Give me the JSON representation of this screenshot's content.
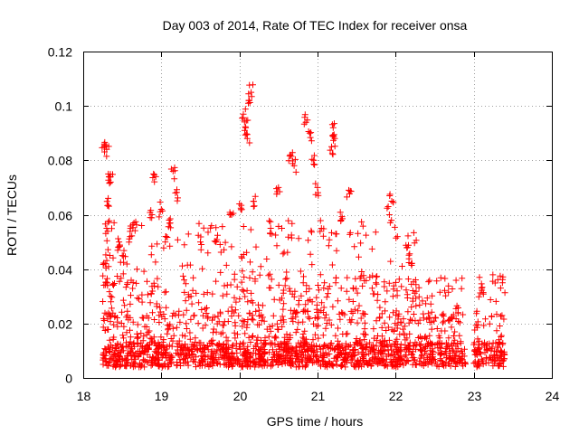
{
  "chart_data": {
    "type": "scatter",
    "title": "Day 003 of 2014, Rate Of TEC Index for receiver onsa",
    "xlabel": "GPS time / hours",
    "ylabel": "ROTI / TECUs",
    "xlim": [
      18,
      24
    ],
    "ylim": [
      0,
      0.12
    ],
    "xticks": [
      18,
      19,
      20,
      21,
      22,
      23,
      24
    ],
    "yticks": [
      0,
      0.02,
      0.04,
      0.06,
      0.08,
      0.1,
      0.12
    ],
    "xtick_labels": [
      "18",
      "19",
      "20",
      "21",
      "22",
      "23",
      "24"
    ],
    "ytick_labels": [
      "0",
      "0.02",
      "0.04",
      "0.06",
      "0.08",
      "0.1",
      "0.12"
    ],
    "grid": true,
    "marker": "+",
    "color": "#ff0000",
    "series": [
      {
        "name": "ROTI",
        "x_range": [
          18.25,
          23.4
        ],
        "gaps": [
          [
            22.9,
            23.0
          ]
        ],
        "baseline_band": [
          0.004,
          0.025
        ],
        "highlights": [
          {
            "x": 18.27,
            "y": 0.086
          },
          {
            "x": 18.3,
            "y": 0.084
          },
          {
            "x": 18.33,
            "y": 0.074
          },
          {
            "x": 18.35,
            "y": 0.072
          },
          {
            "x": 18.32,
            "y": 0.066
          },
          {
            "x": 18.3,
            "y": 0.055
          },
          {
            "x": 18.28,
            "y": 0.042
          },
          {
            "x": 18.31,
            "y": 0.034
          },
          {
            "x": 18.45,
            "y": 0.048
          },
          {
            "x": 18.5,
            "y": 0.045
          },
          {
            "x": 18.6,
            "y": 0.052
          },
          {
            "x": 18.65,
            "y": 0.057
          },
          {
            "x": 18.9,
            "y": 0.075
          },
          {
            "x": 18.88,
            "y": 0.06
          },
          {
            "x": 19.0,
            "y": 0.062
          },
          {
            "x": 19.05,
            "y": 0.05
          },
          {
            "x": 19.15,
            "y": 0.076
          },
          {
            "x": 19.18,
            "y": 0.068
          },
          {
            "x": 19.1,
            "y": 0.058
          },
          {
            "x": 19.5,
            "y": 0.05
          },
          {
            "x": 19.7,
            "y": 0.05
          },
          {
            "x": 19.9,
            "y": 0.06
          },
          {
            "x": 20.0,
            "y": 0.064
          },
          {
            "x": 20.05,
            "y": 0.097
          },
          {
            "x": 20.08,
            "y": 0.092
          },
          {
            "x": 20.15,
            "y": 0.105
          },
          {
            "x": 20.12,
            "y": 0.102
          },
          {
            "x": 20.1,
            "y": 0.088
          },
          {
            "x": 20.18,
            "y": 0.065
          },
          {
            "x": 20.4,
            "y": 0.055
          },
          {
            "x": 20.5,
            "y": 0.07
          },
          {
            "x": 20.65,
            "y": 0.082
          },
          {
            "x": 20.7,
            "y": 0.078
          },
          {
            "x": 20.85,
            "y": 0.094
          },
          {
            "x": 20.9,
            "y": 0.09
          },
          {
            "x": 20.95,
            "y": 0.08
          },
          {
            "x": 21.0,
            "y": 0.07
          },
          {
            "x": 21.05,
            "y": 0.055
          },
          {
            "x": 21.2,
            "y": 0.092
          },
          {
            "x": 21.22,
            "y": 0.088
          },
          {
            "x": 21.18,
            "y": 0.085
          },
          {
            "x": 21.4,
            "y": 0.069
          },
          {
            "x": 21.3,
            "y": 0.058
          },
          {
            "x": 21.95,
            "y": 0.065
          },
          {
            "x": 21.92,
            "y": 0.06
          },
          {
            "x": 22.15,
            "y": 0.048
          },
          {
            "x": 22.2,
            "y": 0.042
          },
          {
            "x": 23.1,
            "y": 0.033
          }
        ]
      }
    ]
  }
}
